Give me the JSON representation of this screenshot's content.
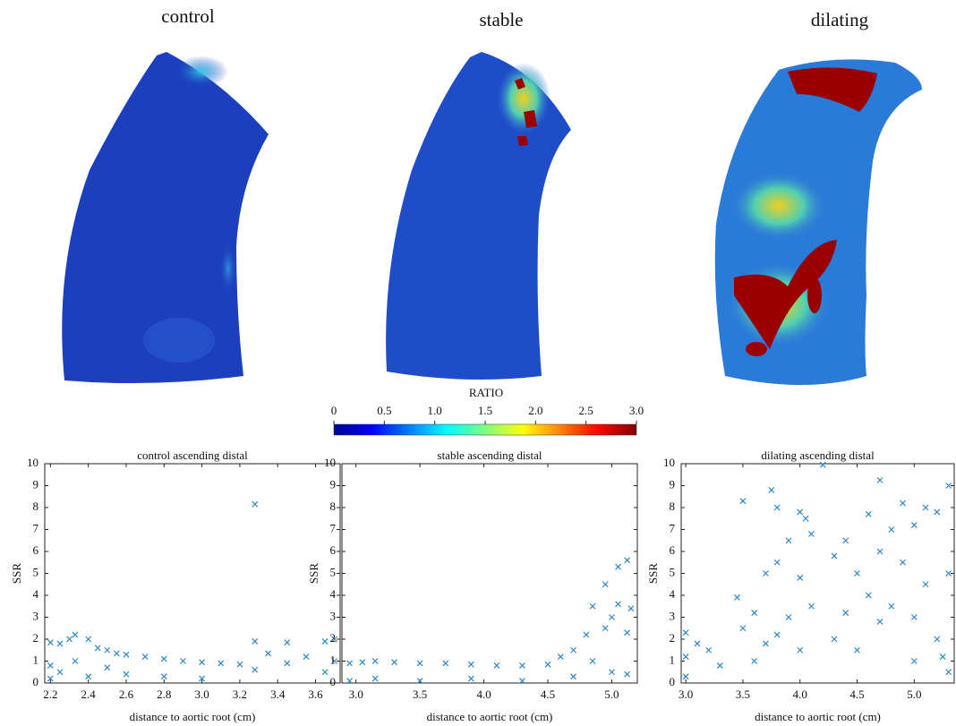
{
  "panels": [
    "control",
    "stable",
    "dilating"
  ],
  "colorbar": {
    "label": "RATIO",
    "range": [
      0,
      3
    ],
    "ticks": [
      0,
      0.5,
      {
        "value": 1,
        "label": "1.0"
      },
      1.5,
      {
        "value": 2,
        "label": "2.0"
      },
      2.5,
      {
        "value": 3,
        "label": "3.0"
      }
    ]
  },
  "chart_data": [
    {
      "type": "scatter",
      "title": "control ascending distal",
      "xlabel": "distance to aortic root (cm)",
      "ylabel": "SSR",
      "color": "#2b86c6",
      "xlim": [
        2.17,
        3.73
      ],
      "ylim": [
        0,
        10
      ],
      "xticks": [
        2.2,
        2.4,
        2.6,
        2.8,
        {
          "value": 3,
          "label": "3.0"
        },
        3.2,
        3.4,
        3.6
      ],
      "yticks": [
        0,
        1,
        2,
        3,
        4,
        5,
        6,
        7,
        8,
        9,
        10
      ],
      "x": [
        2.2,
        2.2,
        2.2,
        2.25,
        2.25,
        2.3,
        2.33,
        2.33,
        2.4,
        2.4,
        2.45,
        2.5,
        2.5,
        2.55,
        2.6,
        2.6,
        2.7,
        2.8,
        2.8,
        2.9,
        3.0,
        3.0,
        3.1,
        3.2,
        3.28,
        3.28,
        3.28,
        3.35,
        3.45,
        3.45,
        3.55,
        3.65,
        3.65,
        3.7,
        3.7
      ],
      "y": [
        1.85,
        0.8,
        0.2,
        1.8,
        0.5,
        2.0,
        2.2,
        1.0,
        2.0,
        0.3,
        1.6,
        1.5,
        0.7,
        1.35,
        1.3,
        0.4,
        1.2,
        1.1,
        0.3,
        1.0,
        0.95,
        0.2,
        0.9,
        0.85,
        8.15,
        1.9,
        0.6,
        1.35,
        1.85,
        0.9,
        1.2,
        1.9,
        0.5,
        2.0,
        1.0
      ]
    },
    {
      "type": "scatter",
      "title": "stable ascending distal",
      "xlabel": "distance to aortic root (cm)",
      "ylabel": "SSR",
      "color": "#2b86c6",
      "xlim": [
        2.89,
        5.2
      ],
      "ylim": [
        0,
        10
      ],
      "xticks": [
        {
          "value": 3,
          "label": "3.0"
        },
        3.5,
        {
          "value": 4,
          "label": "4.0"
        },
        4.5,
        {
          "value": 5,
          "label": "5.0"
        }
      ],
      "yticks": [
        0,
        1,
        2,
        3,
        4,
        5,
        6,
        7,
        8,
        9,
        10
      ],
      "x": [
        2.95,
        2.95,
        3.05,
        3.15,
        3.15,
        3.3,
        3.5,
        3.5,
        3.7,
        3.9,
        3.9,
        4.1,
        4.3,
        4.3,
        4.5,
        4.6,
        4.7,
        4.7,
        4.8,
        4.85,
        4.85,
        4.95,
        4.95,
        5.0,
        5.0,
        5.05,
        5.05,
        5.12,
        5.12,
        5.12,
        5.15
      ],
      "y": [
        0.9,
        0.1,
        0.95,
        1.0,
        0.2,
        0.95,
        0.9,
        0.1,
        0.9,
        0.85,
        0.2,
        0.8,
        0.8,
        0.1,
        0.85,
        1.2,
        1.5,
        0.3,
        2.2,
        3.5,
        1.0,
        4.5,
        2.5,
        3.0,
        0.5,
        5.3,
        3.6,
        5.6,
        2.3,
        0.4,
        3.4
      ]
    },
    {
      "type": "scatter",
      "title": "dilating ascending distal",
      "xlabel": "distance to aortic root (cm)",
      "ylabel": "SSR",
      "color": "#2b86c6",
      "xlim": [
        2.96,
        5.35
      ],
      "ylim": [
        0,
        10
      ],
      "xticks": [
        {
          "value": 3,
          "label": "3.0"
        },
        3.5,
        {
          "value": 4,
          "label": "4.0"
        },
        4.5,
        {
          "value": 5,
          "label": "5.0"
        }
      ],
      "yticks": [
        0,
        1,
        2,
        3,
        4,
        5,
        6,
        7,
        8,
        9,
        10
      ],
      "x": [
        3.0,
        3.0,
        3.0,
        3.1,
        3.2,
        3.3,
        3.45,
        3.5,
        3.5,
        3.6,
        3.6,
        3.7,
        3.7,
        3.75,
        3.8,
        3.8,
        3.8,
        3.9,
        3.9,
        4.0,
        4.0,
        4.0,
        4.05,
        4.1,
        4.1,
        4.2,
        4.3,
        4.3,
        4.4,
        4.4,
        4.5,
        4.5,
        4.6,
        4.6,
        4.7,
        4.7,
        4.7,
        4.8,
        4.8,
        4.9,
        4.9,
        5.0,
        5.0,
        5.0,
        5.1,
        5.1,
        5.2,
        5.2,
        5.25,
        5.3,
        5.3,
        5.3
      ],
      "y": [
        2.3,
        1.2,
        0.3,
        1.8,
        1.5,
        0.8,
        3.9,
        8.3,
        2.5,
        3.2,
        1.0,
        5.0,
        1.8,
        8.8,
        8.0,
        5.5,
        2.2,
        6.5,
        3.0,
        7.8,
        4.8,
        1.5,
        7.5,
        6.8,
        3.5,
        9.95,
        5.8,
        2.0,
        6.5,
        3.2,
        5.0,
        1.5,
        7.7,
        4.0,
        9.25,
        6.0,
        2.8,
        7.0,
        3.5,
        8.2,
        5.5,
        7.2,
        3.0,
        1.0,
        8.0,
        4.5,
        7.8,
        2.0,
        1.2,
        9.0,
        5.0,
        0.5
      ]
    }
  ]
}
